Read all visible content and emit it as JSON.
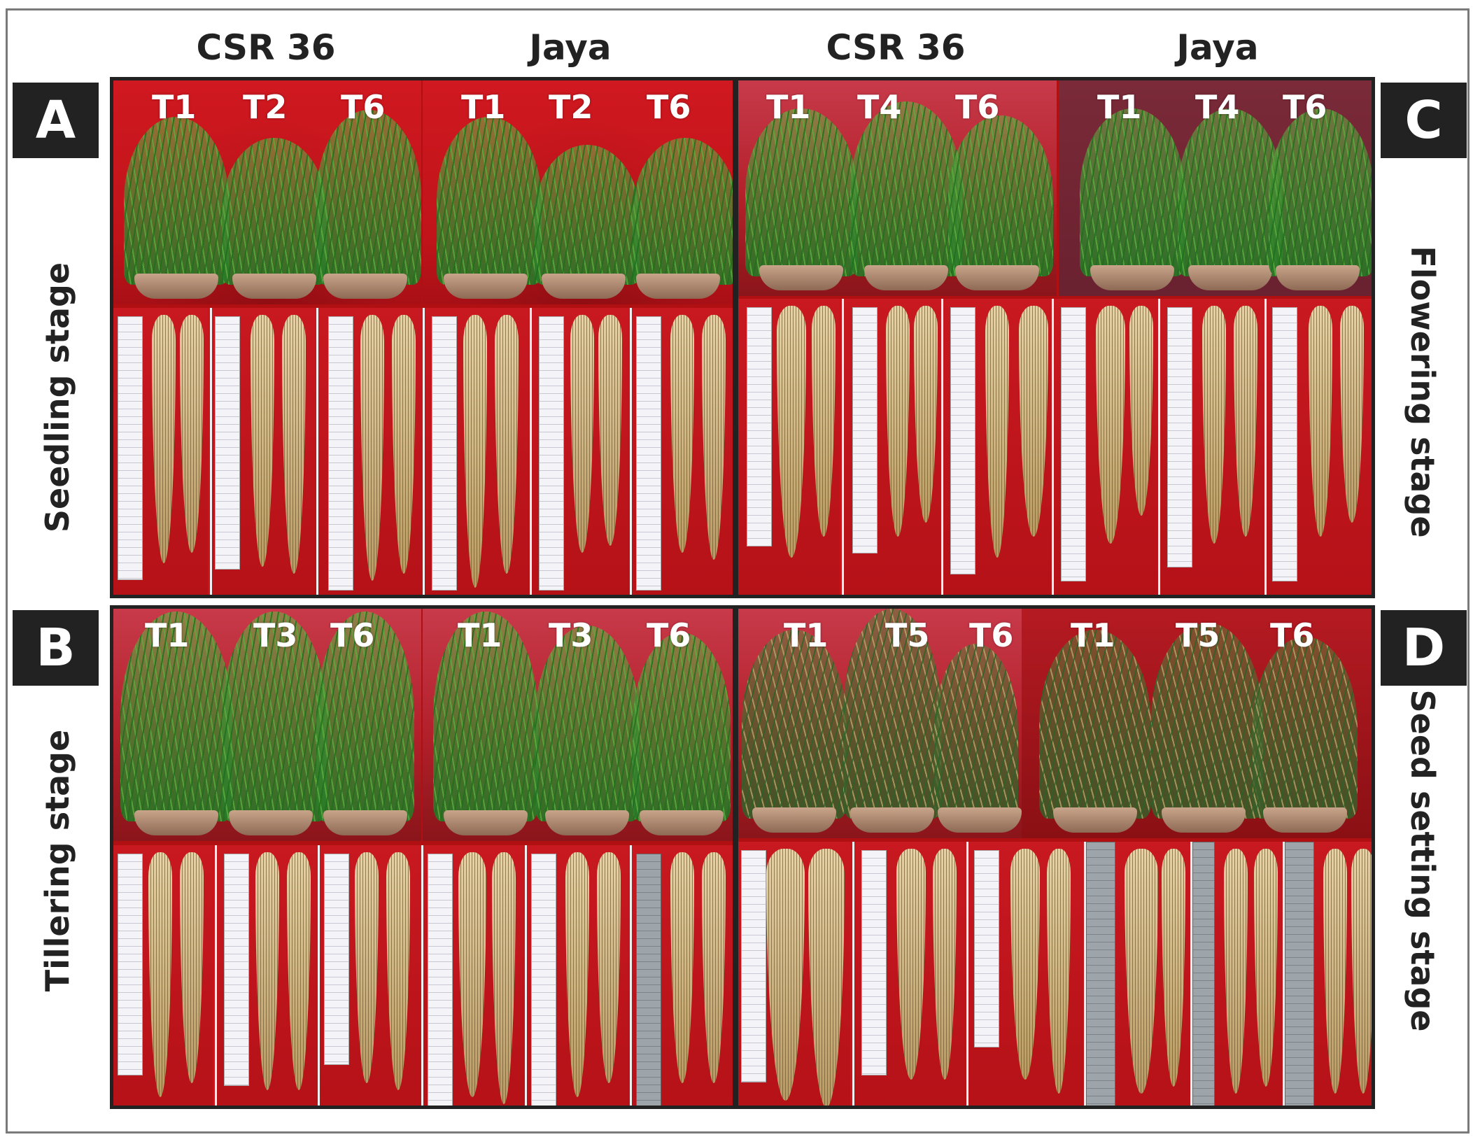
{
  "columns": {
    "left_cultivar_1": "CSR 36",
    "left_cultivar_2": "Jaya",
    "right_cultivar_1": "CSR 36",
    "right_cultivar_2": "Jaya"
  },
  "panels": {
    "A": {
      "letter": "A",
      "stage": "Seedling stage",
      "labels_left": [
        "T1",
        "T2",
        "T6"
      ],
      "labels_right": [
        "T1",
        "T2",
        "T6"
      ]
    },
    "B": {
      "letter": "B",
      "stage": "Tillering stage",
      "labels_left": [
        "T1",
        "T3",
        "T6"
      ],
      "labels_right": [
        "T1",
        "T3",
        "T6"
      ]
    },
    "C": {
      "letter": "C",
      "stage": "Flowering stage",
      "labels_left": [
        "T1",
        "T4",
        "T6"
      ],
      "labels_right": [
        "T1",
        "T4",
        "T6"
      ]
    },
    "D": {
      "letter": "D",
      "stage": "Seed setting stage",
      "labels_left": [
        "T1",
        "T5",
        "T6"
      ],
      "labels_right": [
        "T1",
        "T5",
        "T6"
      ]
    }
  }
}
